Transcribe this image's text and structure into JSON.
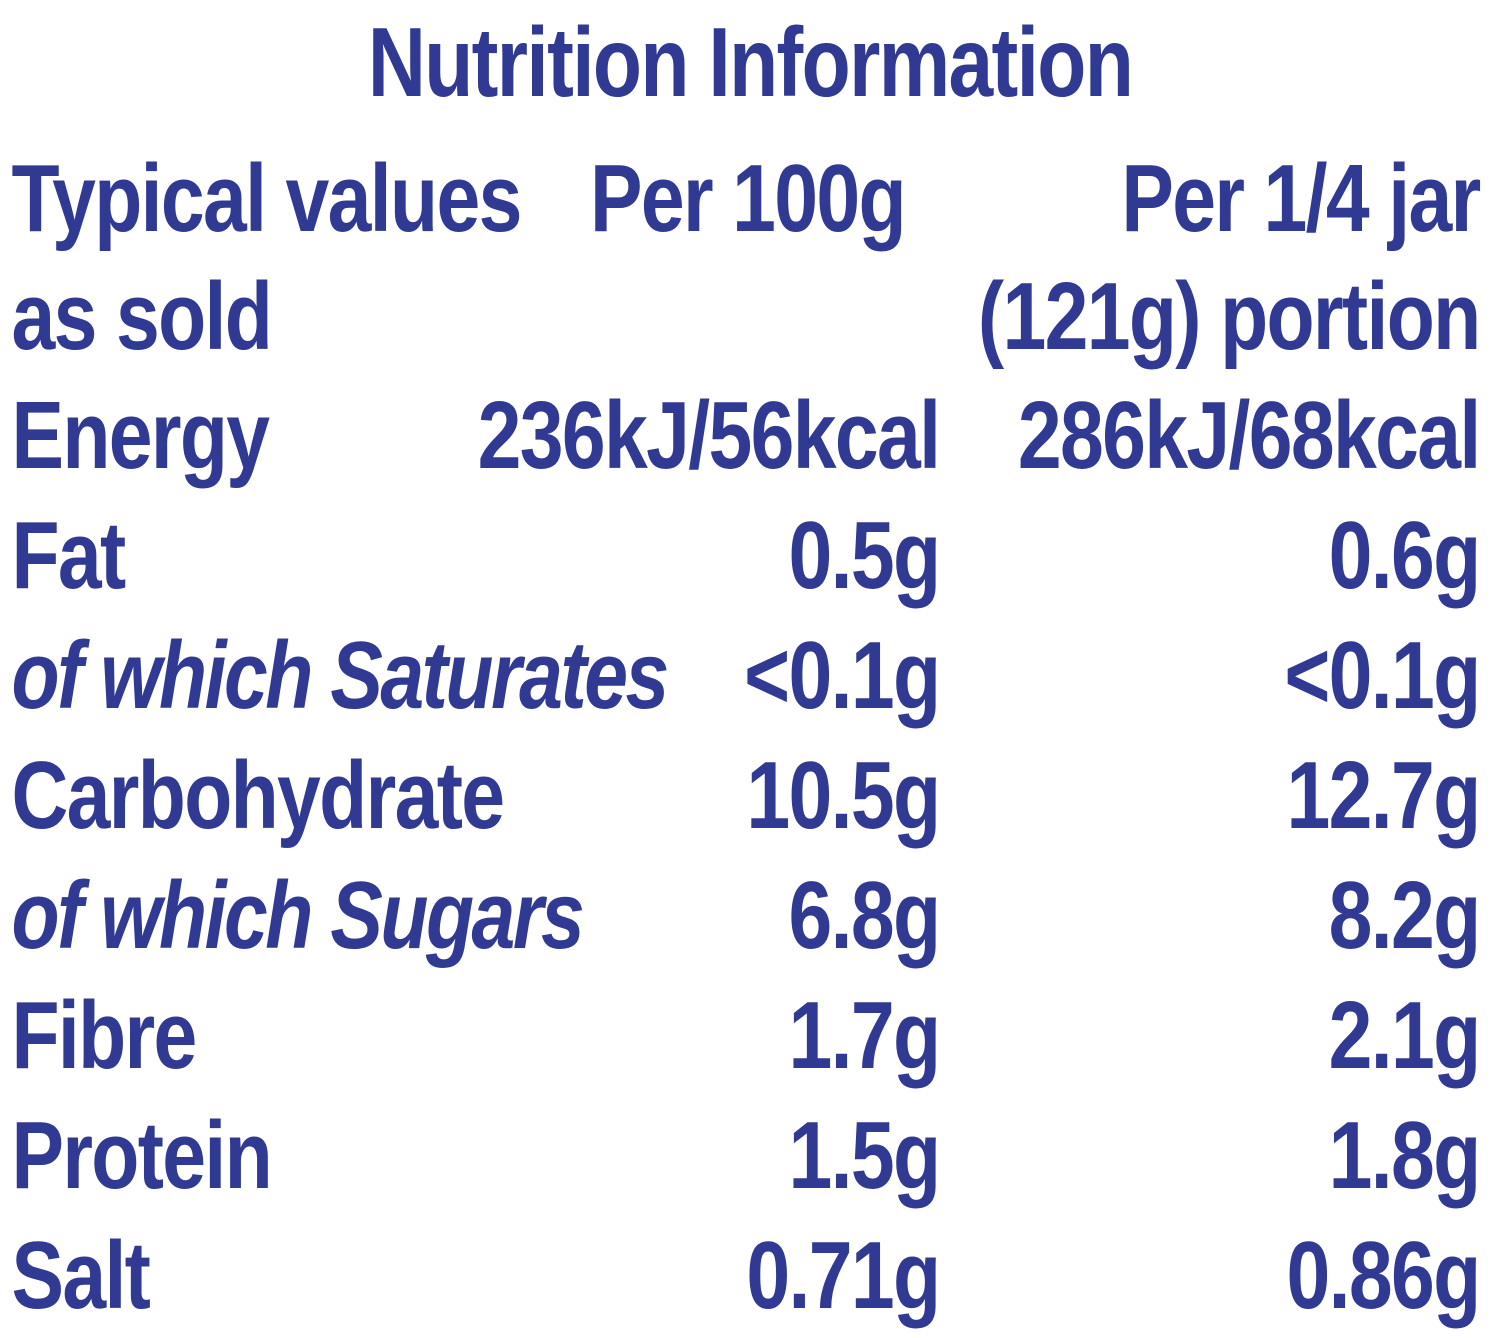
{
  "title": "Nutrition Information",
  "ink_color": "#303a92",
  "background_color": "#ffffff",
  "table": {
    "header": {
      "col1_line1": "Typical values",
      "col1_line2": "as sold",
      "col2": "Per 100g",
      "col3_line1": "Per 1/4 jar",
      "col3_line2": "(121g) portion"
    },
    "rows": [
      {
        "label": "Energy",
        "per_100g": "236kJ/56kcal",
        "per_portion": "286kJ/68kcal"
      },
      {
        "label": "Fat",
        "per_100g": "0.5g",
        "per_portion": "0.6g"
      },
      {
        "label": "of which Saturates",
        "per_100g": "<0.1g",
        "per_portion": "<0.1g"
      },
      {
        "label": "Carbohydrate",
        "per_100g": "10.5g",
        "per_portion": "12.7g"
      },
      {
        "label": "of which Sugars",
        "per_100g": "6.8g",
        "per_portion": "8.2g"
      },
      {
        "label": "Fibre",
        "per_100g": "1.7g",
        "per_portion": "2.1g"
      },
      {
        "label": "Protein",
        "per_100g": "1.5g",
        "per_portion": "1.8g"
      },
      {
        "label": "Salt",
        "per_100g": "0.71g",
        "per_portion": "0.86g"
      }
    ]
  }
}
